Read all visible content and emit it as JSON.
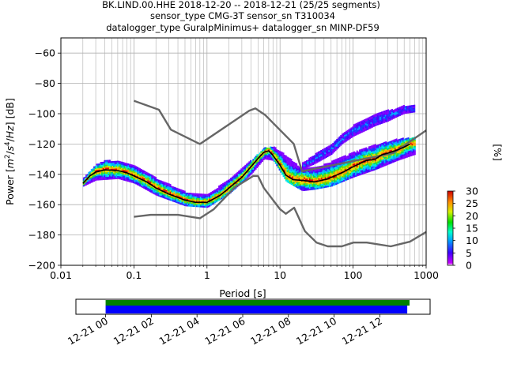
{
  "chart_data": [
    {
      "type": "heatmap",
      "title_lines": [
        "BK.LIND.00.HHE   2018-12-20 -- 2018-12-21  (25/25 segments)",
        "sensor_type CMG-3T sensor_sn T310034",
        "datalogger_type GuralpMinimus+ datalogger_sn MINP-DF59"
      ],
      "xlabel": "Period [s]",
      "ylabel_parts": [
        "Power [",
        "m",
        "2",
        "/",
        "s",
        "4",
        "/",
        "Hz",
        "] [dB]"
      ],
      "xscale": "log",
      "xlim": [
        0.01,
        1000
      ],
      "ylim": [
        -200,
        -50
      ],
      "x_ticks": [
        {
          "value": 0.01,
          "label": "0.01"
        },
        {
          "value": 0.1,
          "label": "0.1"
        },
        {
          "value": 1,
          "label": "1"
        },
        {
          "value": 10,
          "label": "10"
        },
        {
          "value": 100,
          "label": "100"
        },
        {
          "value": 1000,
          "label": "1000"
        }
      ],
      "y_ticks": [
        {
          "value": -60,
          "label": "−60"
        },
        {
          "value": -80,
          "label": "−80"
        },
        {
          "value": -100,
          "label": "−100"
        },
        {
          "value": -120,
          "label": "−120"
        },
        {
          "value": -140,
          "label": "−140"
        },
        {
          "value": -160,
          "label": "−160"
        },
        {
          "value": -180,
          "label": "−180"
        },
        {
          "value": -200,
          "label": "−200"
        }
      ],
      "grid": true,
      "colorbar": {
        "label": "[%]",
        "range": [
          0,
          30
        ],
        "ticks": [
          {
            "value": 0,
            "label": "0"
          },
          {
            "value": 5,
            "label": "5"
          },
          {
            "value": 10,
            "label": "10"
          },
          {
            "value": 15,
            "label": "15"
          },
          {
            "value": 20,
            "label": "20"
          },
          {
            "value": 25,
            "label": "25"
          },
          {
            "value": 30,
            "label": "30"
          }
        ]
      },
      "series": [
        {
          "role": "high noise model",
          "color": "#666666",
          "points": [
            [
              0.1,
              -91.5
            ],
            [
              0.22,
              -97.4
            ],
            [
              0.32,
              -110.5
            ],
            [
              0.8,
              -120
            ],
            [
              3.8,
              -98
            ],
            [
              4.6,
              -96.5
            ],
            [
              6.3,
              -101
            ],
            [
              15.4,
              -119.9
            ],
            [
              20,
              -138
            ],
            [
              354,
              -126
            ],
            [
              1000,
              -111
            ]
          ]
        },
        {
          "role": "low noise model",
          "color": "#666666",
          "points": [
            [
              0.1,
              -168
            ],
            [
              0.17,
              -166.7
            ],
            [
              0.4,
              -166.7
            ],
            [
              0.8,
              -169
            ],
            [
              1.24,
              -163
            ],
            [
              2.4,
              -148.6
            ],
            [
              4.3,
              -141.1
            ],
            [
              5,
              -141.1
            ],
            [
              6,
              -149
            ],
            [
              10,
              -163
            ],
            [
              12,
              -166
            ],
            [
              15.6,
              -162
            ],
            [
              21.9,
              -177.5
            ],
            [
              31.6,
              -185
            ],
            [
              45,
              -187.5
            ],
            [
              70,
              -187.5
            ],
            [
              101,
              -185
            ],
            [
              154,
              -185
            ],
            [
              328,
              -187.5
            ],
            [
              600,
              -184.4
            ],
            [
              1000,
              -178
            ]
          ]
        },
        {
          "role": "mode",
          "color": "#000000",
          "points": [
            [
              0.02,
              -146
            ],
            [
              0.025,
              -141
            ],
            [
              0.03,
              -138.5
            ],
            [
              0.04,
              -137
            ],
            [
              0.06,
              -137.5
            ],
            [
              0.08,
              -139
            ],
            [
              0.1,
              -141
            ],
            [
              0.15,
              -145
            ],
            [
              0.2,
              -149
            ],
            [
              0.3,
              -153
            ],
            [
              0.5,
              -157
            ],
            [
              0.7,
              -158.5
            ],
            [
              1,
              -158.5
            ],
            [
              1.5,
              -154
            ],
            [
              2,
              -149
            ],
            [
              3,
              -142
            ],
            [
              4,
              -135
            ],
            [
              5,
              -129.5
            ],
            [
              6,
              -125.5
            ],
            [
              7,
              -124.5
            ],
            [
              8,
              -127.5
            ],
            [
              10,
              -134
            ],
            [
              12,
              -140.5
            ],
            [
              15,
              -143.5
            ],
            [
              20,
              -144
            ],
            [
              30,
              -145
            ],
            [
              45,
              -143
            ],
            [
              70,
              -139
            ],
            [
              100,
              -135
            ],
            [
              150,
              -131
            ],
            [
              200,
              -130
            ],
            [
              250,
              -127
            ],
            [
              300,
              -126
            ],
            [
              400,
              -124
            ],
            [
              500,
              -122
            ],
            [
              600,
              -120
            ]
          ]
        },
        {
          "role": "pdf band upper",
          "points": [
            [
              0.02,
              -143
            ],
            [
              0.03,
              -134
            ],
            [
              0.04,
              -131
            ],
            [
              0.06,
              -132
            ],
            [
              0.1,
              -135
            ],
            [
              0.2,
              -143
            ],
            [
              0.5,
              -152
            ],
            [
              1,
              -154
            ],
            [
              2,
              -143
            ],
            [
              4,
              -131
            ],
            [
              6,
              -123
            ],
            [
              8,
              -122
            ],
            [
              12,
              -128
            ],
            [
              20,
              -137
            ],
            [
              30,
              -136
            ],
            [
              50,
              -132
            ],
            [
              100,
              -126
            ],
            [
              200,
              -121
            ],
            [
              400,
              -117
            ],
            [
              700,
              -116
            ]
          ]
        },
        {
          "role": "pdf band lower",
          "points": [
            [
              0.02,
              -148
            ],
            [
              0.03,
              -144
            ],
            [
              0.06,
              -143
            ],
            [
              0.1,
              -146
            ],
            [
              0.2,
              -154
            ],
            [
              0.5,
              -161
            ],
            [
              1,
              -162
            ],
            [
              2,
              -153
            ],
            [
              4,
              -140
            ],
            [
              6,
              -130
            ],
            [
              8,
              -131
            ],
            [
              12,
              -145
            ],
            [
              20,
              -151
            ],
            [
              30,
              -150
            ],
            [
              50,
              -148
            ],
            [
              100,
              -142
            ],
            [
              200,
              -137
            ],
            [
              400,
              -131
            ],
            [
              700,
              -127
            ]
          ]
        },
        {
          "role": "high outlier band upper",
          "points": [
            [
              20,
              -133
            ],
            [
              30,
              -127
            ],
            [
              50,
              -120
            ],
            [
              70,
              -114
            ],
            [
              100,
              -108
            ],
            [
              150,
              -104
            ],
            [
              200,
              -101
            ],
            [
              300,
              -98
            ],
            [
              400,
              -97
            ],
            [
              500,
              -95
            ],
            [
              700,
              -95
            ]
          ]
        },
        {
          "role": "high outlier band lower",
          "points": [
            [
              20,
              -137
            ],
            [
              30,
              -133
            ],
            [
              50,
              -127
            ],
            [
              70,
              -120
            ],
            [
              100,
              -115
            ],
            [
              150,
              -111
            ],
            [
              200,
              -108
            ],
            [
              300,
              -105
            ],
            [
              400,
              -102
            ],
            [
              500,
              -100
            ],
            [
              700,
              -99
            ]
          ]
        }
      ]
    },
    {
      "type": "bar",
      "xlim_hours": [
        -1.3,
        14.2
      ],
      "x_ticks": [
        {
          "hour": 0,
          "label": "12-21 00"
        },
        {
          "hour": 2,
          "label": "12-21 02"
        },
        {
          "hour": 4,
          "label": "12-21 04"
        },
        {
          "hour": 6,
          "label": "12-21 06"
        },
        {
          "hour": 8,
          "label": "12-21 08"
        },
        {
          "hour": 10,
          "label": "12-21 10"
        },
        {
          "hour": 12,
          "label": "12-21 12"
        }
      ],
      "bars": [
        {
          "role": "available data",
          "color": "#008000",
          "start_hour": 0,
          "end_hour": 13.3
        },
        {
          "role": "used segments",
          "color": "#0000ff",
          "start_hour": 0,
          "end_hour": 13.2
        }
      ]
    }
  ]
}
